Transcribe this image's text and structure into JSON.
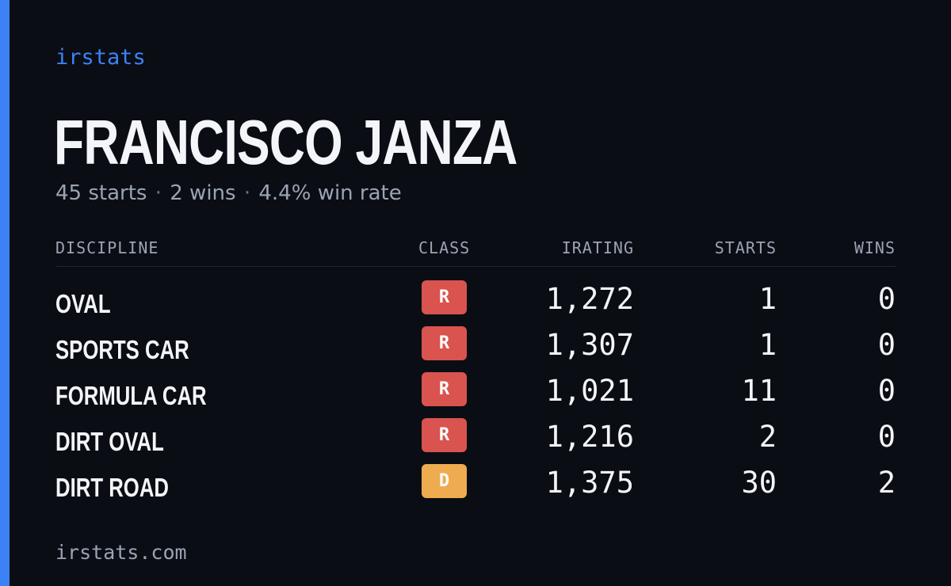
{
  "brand": "irstats",
  "driver": {
    "name": "FRANCISCO JANZA"
  },
  "summary": {
    "starts": "45 starts",
    "wins": "2 wins",
    "win_rate": "4.4% win rate",
    "separator": "·"
  },
  "table": {
    "headers": {
      "discipline": "DISCIPLINE",
      "class": "CLASS",
      "irating": "IRATING",
      "starts": "STARTS",
      "wins": "WINS"
    },
    "rows": [
      {
        "discipline": "OVAL",
        "class": "R",
        "irating": "1,272",
        "starts": "1",
        "wins": "0"
      },
      {
        "discipline": "SPORTS CAR",
        "class": "R",
        "irating": "1,307",
        "starts": "1",
        "wins": "0"
      },
      {
        "discipline": "FORMULA CAR",
        "class": "R",
        "irating": "1,021",
        "starts": "11",
        "wins": "0"
      },
      {
        "discipline": "DIRT OVAL",
        "class": "R",
        "irating": "1,216",
        "starts": "2",
        "wins": "0"
      },
      {
        "discipline": "DIRT ROAD",
        "class": "D",
        "irating": "1,375",
        "starts": "30",
        "wins": "2"
      }
    ]
  },
  "class_colors": {
    "R": "#d9534f",
    "D": "#eeab4f"
  },
  "accent_color": "#3b82f6",
  "footer": {
    "domain": "irstats.com"
  }
}
